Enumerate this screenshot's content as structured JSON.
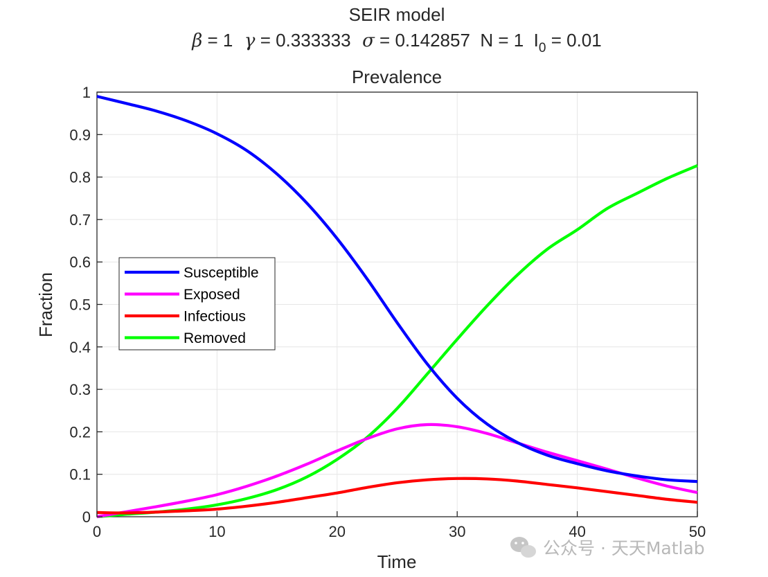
{
  "chart_data": {
    "type": "line",
    "suptitle": "SEIR model",
    "params": [
      {
        "sym": "β",
        "val": "= 1"
      },
      {
        "sym": "γ",
        "val": "= 0.333333"
      },
      {
        "sym": "σ",
        "val": "= 0.142857"
      },
      {
        "sym": "",
        "val": "N = 1"
      },
      {
        "sym": "I",
        "sub": "0",
        "val": "= 0.01"
      }
    ],
    "title": "Prevalence",
    "xlabel": "Time",
    "ylabel": "Fraction",
    "xlim": [
      0,
      50
    ],
    "ylim": [
      0,
      1
    ],
    "xticks": [
      "0",
      "10",
      "20",
      "30",
      "40",
      "50"
    ],
    "yticks": [
      "0",
      "0.1",
      "0.2",
      "0.3",
      "0.4",
      "0.5",
      "0.6",
      "0.7",
      "0.8",
      "0.9",
      "1"
    ],
    "grid": true,
    "legend_position": "left",
    "x": [
      0,
      2.5,
      5,
      7.5,
      10,
      12.5,
      15,
      17.5,
      20,
      22.5,
      25,
      27.5,
      30,
      32.5,
      35,
      37.5,
      40,
      42.5,
      45,
      47.5,
      50
    ],
    "series": [
      {
        "name": "Susceptible",
        "color": "#0000ff",
        "values": [
          0.99,
          0.973,
          0.955,
          0.932,
          0.902,
          0.862,
          0.807,
          0.738,
          0.655,
          0.56,
          0.457,
          0.36,
          0.279,
          0.218,
          0.175,
          0.145,
          0.125,
          0.108,
          0.096,
          0.087,
          0.083
        ]
      },
      {
        "name": "Exposed",
        "color": "#ff00ff",
        "values": [
          0.0,
          0.012,
          0.024,
          0.037,
          0.052,
          0.072,
          0.096,
          0.124,
          0.155,
          0.184,
          0.207,
          0.217,
          0.212,
          0.196,
          0.174,
          0.152,
          0.132,
          0.112,
          0.091,
          0.072,
          0.057
        ]
      },
      {
        "name": "Infectious",
        "color": "#ff0000",
        "values": [
          0.01,
          0.009,
          0.011,
          0.014,
          0.018,
          0.025,
          0.034,
          0.045,
          0.056,
          0.069,
          0.08,
          0.087,
          0.09,
          0.089,
          0.084,
          0.076,
          0.068,
          0.059,
          0.05,
          0.041,
          0.034
        ]
      },
      {
        "name": "Removed",
        "color": "#00ff00",
        "values": [
          0.0,
          0.006,
          0.011,
          0.018,
          0.028,
          0.043,
          0.064,
          0.094,
          0.135,
          0.187,
          0.255,
          0.336,
          0.418,
          0.497,
          0.569,
          0.63,
          0.676,
          0.726,
          0.762,
          0.797,
          0.827
        ]
      }
    ]
  },
  "watermark": "公众号 · 天天Matlab"
}
